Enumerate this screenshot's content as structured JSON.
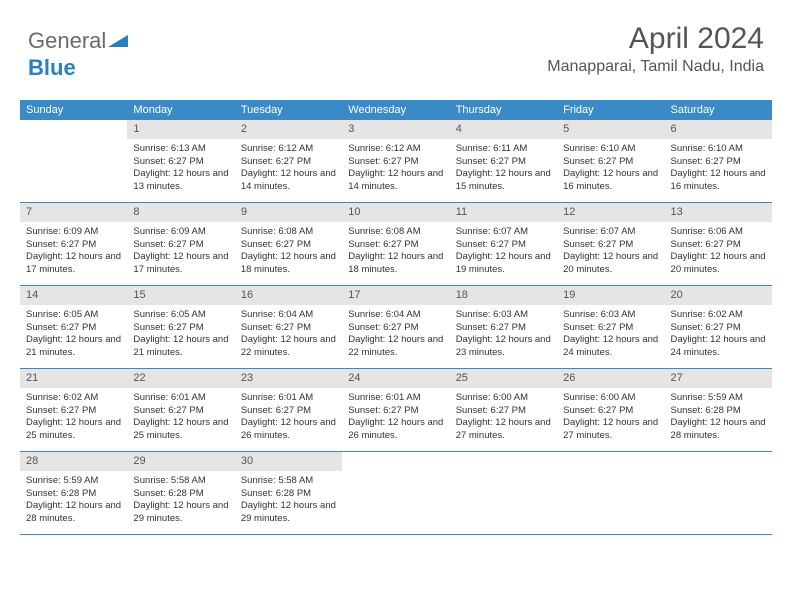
{
  "logo": {
    "part1": "General",
    "part2": "Blue"
  },
  "header": {
    "month_title": "April 2024",
    "location": "Manapparai, Tamil Nadu, India"
  },
  "colors": {
    "header_bg": "#3a8ac8",
    "daynum_bg": "#e5e5e5",
    "logo_gray": "#6b6b6b",
    "logo_blue": "#2a7fbf",
    "text": "#333333",
    "title_text": "#555555"
  },
  "days_of_week": [
    "Sunday",
    "Monday",
    "Tuesday",
    "Wednesday",
    "Thursday",
    "Friday",
    "Saturday"
  ],
  "weeks": [
    [
      null,
      {
        "n": "1",
        "sr": "Sunrise: 6:13 AM",
        "ss": "Sunset: 6:27 PM",
        "dl": "Daylight: 12 hours and 13 minutes."
      },
      {
        "n": "2",
        "sr": "Sunrise: 6:12 AM",
        "ss": "Sunset: 6:27 PM",
        "dl": "Daylight: 12 hours and 14 minutes."
      },
      {
        "n": "3",
        "sr": "Sunrise: 6:12 AM",
        "ss": "Sunset: 6:27 PM",
        "dl": "Daylight: 12 hours and 14 minutes."
      },
      {
        "n": "4",
        "sr": "Sunrise: 6:11 AM",
        "ss": "Sunset: 6:27 PM",
        "dl": "Daylight: 12 hours and 15 minutes."
      },
      {
        "n": "5",
        "sr": "Sunrise: 6:10 AM",
        "ss": "Sunset: 6:27 PM",
        "dl": "Daylight: 12 hours and 16 minutes."
      },
      {
        "n": "6",
        "sr": "Sunrise: 6:10 AM",
        "ss": "Sunset: 6:27 PM",
        "dl": "Daylight: 12 hours and 16 minutes."
      }
    ],
    [
      {
        "n": "7",
        "sr": "Sunrise: 6:09 AM",
        "ss": "Sunset: 6:27 PM",
        "dl": "Daylight: 12 hours and 17 minutes."
      },
      {
        "n": "8",
        "sr": "Sunrise: 6:09 AM",
        "ss": "Sunset: 6:27 PM",
        "dl": "Daylight: 12 hours and 17 minutes."
      },
      {
        "n": "9",
        "sr": "Sunrise: 6:08 AM",
        "ss": "Sunset: 6:27 PM",
        "dl": "Daylight: 12 hours and 18 minutes."
      },
      {
        "n": "10",
        "sr": "Sunrise: 6:08 AM",
        "ss": "Sunset: 6:27 PM",
        "dl": "Daylight: 12 hours and 18 minutes."
      },
      {
        "n": "11",
        "sr": "Sunrise: 6:07 AM",
        "ss": "Sunset: 6:27 PM",
        "dl": "Daylight: 12 hours and 19 minutes."
      },
      {
        "n": "12",
        "sr": "Sunrise: 6:07 AM",
        "ss": "Sunset: 6:27 PM",
        "dl": "Daylight: 12 hours and 20 minutes."
      },
      {
        "n": "13",
        "sr": "Sunrise: 6:06 AM",
        "ss": "Sunset: 6:27 PM",
        "dl": "Daylight: 12 hours and 20 minutes."
      }
    ],
    [
      {
        "n": "14",
        "sr": "Sunrise: 6:05 AM",
        "ss": "Sunset: 6:27 PM",
        "dl": "Daylight: 12 hours and 21 minutes."
      },
      {
        "n": "15",
        "sr": "Sunrise: 6:05 AM",
        "ss": "Sunset: 6:27 PM",
        "dl": "Daylight: 12 hours and 21 minutes."
      },
      {
        "n": "16",
        "sr": "Sunrise: 6:04 AM",
        "ss": "Sunset: 6:27 PM",
        "dl": "Daylight: 12 hours and 22 minutes."
      },
      {
        "n": "17",
        "sr": "Sunrise: 6:04 AM",
        "ss": "Sunset: 6:27 PM",
        "dl": "Daylight: 12 hours and 22 minutes."
      },
      {
        "n": "18",
        "sr": "Sunrise: 6:03 AM",
        "ss": "Sunset: 6:27 PM",
        "dl": "Daylight: 12 hours and 23 minutes."
      },
      {
        "n": "19",
        "sr": "Sunrise: 6:03 AM",
        "ss": "Sunset: 6:27 PM",
        "dl": "Daylight: 12 hours and 24 minutes."
      },
      {
        "n": "20",
        "sr": "Sunrise: 6:02 AM",
        "ss": "Sunset: 6:27 PM",
        "dl": "Daylight: 12 hours and 24 minutes."
      }
    ],
    [
      {
        "n": "21",
        "sr": "Sunrise: 6:02 AM",
        "ss": "Sunset: 6:27 PM",
        "dl": "Daylight: 12 hours and 25 minutes."
      },
      {
        "n": "22",
        "sr": "Sunrise: 6:01 AM",
        "ss": "Sunset: 6:27 PM",
        "dl": "Daylight: 12 hours and 25 minutes."
      },
      {
        "n": "23",
        "sr": "Sunrise: 6:01 AM",
        "ss": "Sunset: 6:27 PM",
        "dl": "Daylight: 12 hours and 26 minutes."
      },
      {
        "n": "24",
        "sr": "Sunrise: 6:01 AM",
        "ss": "Sunset: 6:27 PM",
        "dl": "Daylight: 12 hours and 26 minutes."
      },
      {
        "n": "25",
        "sr": "Sunrise: 6:00 AM",
        "ss": "Sunset: 6:27 PM",
        "dl": "Daylight: 12 hours and 27 minutes."
      },
      {
        "n": "26",
        "sr": "Sunrise: 6:00 AM",
        "ss": "Sunset: 6:27 PM",
        "dl": "Daylight: 12 hours and 27 minutes."
      },
      {
        "n": "27",
        "sr": "Sunrise: 5:59 AM",
        "ss": "Sunset: 6:28 PM",
        "dl": "Daylight: 12 hours and 28 minutes."
      }
    ],
    [
      {
        "n": "28",
        "sr": "Sunrise: 5:59 AM",
        "ss": "Sunset: 6:28 PM",
        "dl": "Daylight: 12 hours and 28 minutes."
      },
      {
        "n": "29",
        "sr": "Sunrise: 5:58 AM",
        "ss": "Sunset: 6:28 PM",
        "dl": "Daylight: 12 hours and 29 minutes."
      },
      {
        "n": "30",
        "sr": "Sunrise: 5:58 AM",
        "ss": "Sunset: 6:28 PM",
        "dl": "Daylight: 12 hours and 29 minutes."
      },
      null,
      null,
      null,
      null
    ]
  ]
}
